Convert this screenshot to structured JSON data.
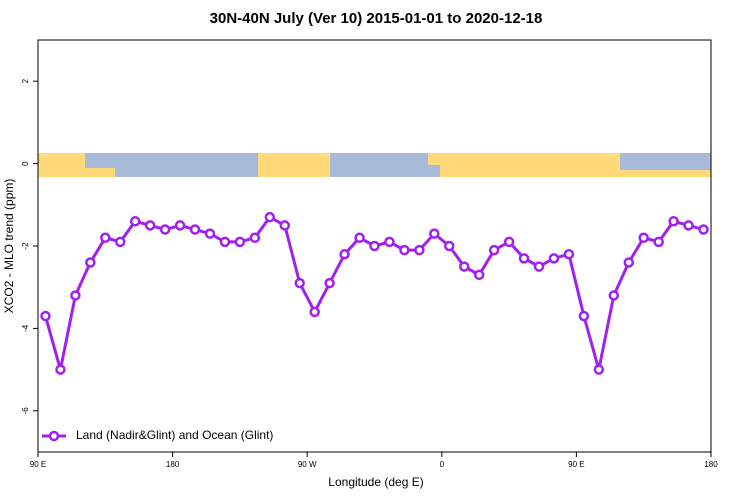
{
  "chart_data": {
    "type": "line",
    "title": "30N-40N July (Ver 10)   2015-01-01 to 2020-12-18",
    "x_label": "Longitude (deg E)",
    "y_label": "XCO2 - MLO trend (ppm)",
    "x": [
      95,
      105,
      115,
      125,
      135,
      145,
      155,
      165,
      175,
      185,
      195,
      205,
      215,
      225,
      235,
      245,
      255,
      265,
      275,
      285,
      295,
      305,
      315,
      325,
      335,
      345,
      355,
      365,
      375,
      385,
      395,
      405,
      415,
      425,
      435,
      445,
      455,
      465,
      475,
      485,
      495,
      505,
      515,
      525,
      535
    ],
    "series": [
      {
        "name": "Land (Nadir&Glint) and Ocean (Glint)",
        "color": "#a020f0",
        "values": [
          -3.7,
          -5.0,
          -3.2,
          -2.4,
          -1.8,
          -1.9,
          -1.4,
          -1.5,
          -1.6,
          -1.5,
          -1.6,
          -1.7,
          -1.9,
          -1.9,
          -1.8,
          -1.3,
          -1.5,
          -2.9,
          -3.6,
          -2.9,
          -2.2,
          -1.8,
          -2.0,
          -1.9,
          -2.1,
          -2.1,
          -1.7,
          -2.0,
          -2.5,
          -2.7,
          -2.1,
          -1.9,
          -2.3,
          -2.5,
          -2.3,
          -2.2,
          -3.7,
          -5.0,
          -3.2,
          -2.4,
          -1.8,
          -1.9,
          -1.4,
          -1.5,
          -1.6
        ]
      }
    ],
    "xlim": [
      90,
      540
    ],
    "xticks": [
      {
        "value": 90,
        "label": "90 E"
      },
      180,
      {
        "value": 270,
        "label": "90 W"
      },
      {
        "value": 360,
        "label": "0"
      },
      {
        "value": 450,
        "label": "90 E"
      },
      {
        "value": 540,
        "label": "180"
      }
    ],
    "ylim": [
      -7,
      3
    ],
    "yticks": [
      -6,
      -4,
      -2,
      0,
      2
    ],
    "legend": "bottom-left"
  }
}
